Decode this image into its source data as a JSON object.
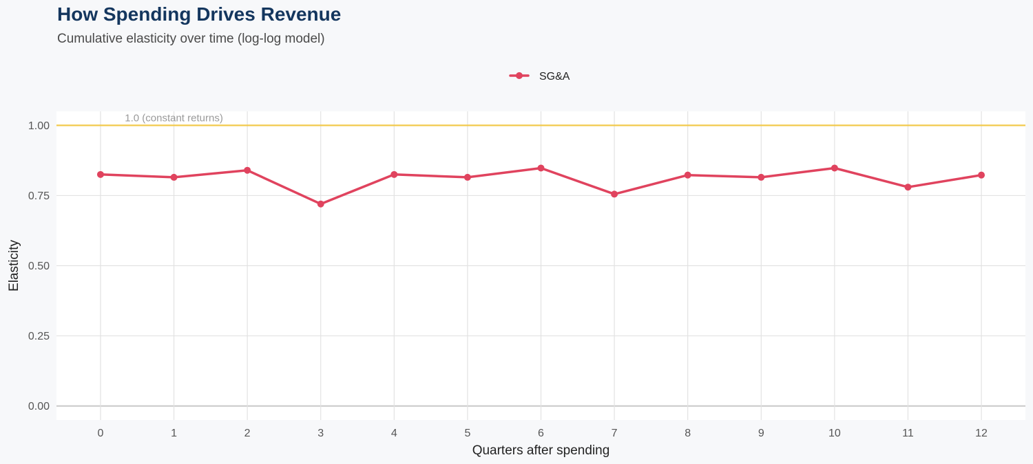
{
  "chart_data": {
    "type": "line",
    "title": "How Spending Drives Revenue",
    "subtitle": "Cumulative elasticity over time (log-log model)",
    "xlabel": "Quarters after spending",
    "ylabel": "Elasticity",
    "x": [
      0,
      1,
      2,
      3,
      4,
      5,
      6,
      7,
      8,
      9,
      10,
      11,
      12
    ],
    "x_tick_labels": [
      "0",
      "1",
      "2",
      "3",
      "4",
      "5",
      "6",
      "7",
      "8",
      "9",
      "10",
      "11",
      "12"
    ],
    "xlim": [
      -0.6,
      12.6
    ],
    "ylim": [
      -0.05,
      1.05
    ],
    "y_ticks": [
      0.0,
      0.25,
      0.5,
      0.75,
      1.0
    ],
    "y_tick_labels": [
      "0.00",
      "0.25",
      "0.50",
      "0.75",
      "1.00"
    ],
    "series": [
      {
        "name": "SG&A",
        "values": [
          0.825,
          0.815,
          0.84,
          0.72,
          0.825,
          0.815,
          0.848,
          0.755,
          0.823,
          0.815,
          0.848,
          0.78,
          0.823
        ],
        "color": "#e0435e"
      }
    ],
    "reference_line": {
      "y": 1.0,
      "label": "1.0 (constant returns)",
      "label_x": 1,
      "color": "#f2c94c"
    },
    "legend_position": "top-center",
    "grid": true,
    "colors": {
      "background": "#f7f8fa",
      "panel": "#ffffff",
      "grid": "#e2e2e2",
      "zero_line": "#c8c8c8",
      "title": "#14365e"
    }
  }
}
